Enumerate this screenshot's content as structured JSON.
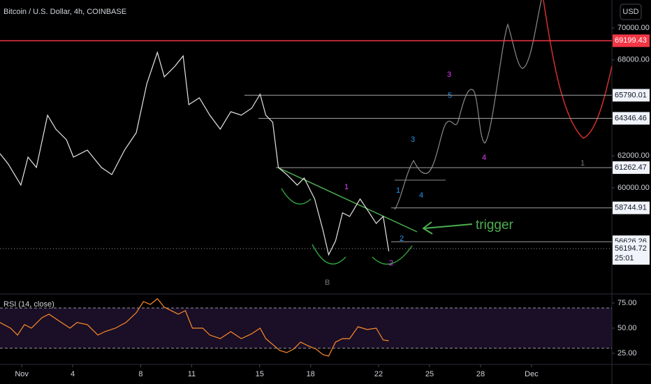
{
  "header": {
    "title": "Bitcoin / U.S. Dollar, 4h, COINBASE",
    "currency": "USD",
    "countdown": "25:01"
  },
  "chart_data": [
    {
      "type": "line",
      "color": "#e6e6e6",
      "x": [
        -0.28,
        0.21,
        0.95,
        1.37,
        1.86,
        2.52,
        3.01,
        3.63,
        4.04,
        4.86,
        5.69,
        6.3,
        7.05,
        7.74,
        8.36,
        8.98,
        9.39,
        10.01,
        10.5,
        10.83,
        11.45,
        12.07,
        12.68,
        13.3,
        13.92,
        14.53,
        15.03,
        15.36,
        15.77,
        16.1,
        16.6,
        17.21,
        17.62,
        18.24,
        18.73,
        19.06,
        19.47,
        19.88,
        20.3,
        20.91,
        21.32,
        21.86,
        22.27,
        22.6
      ],
      "values": [
        62140,
        61480,
        60170,
        61920,
        61270,
        64540,
        63670,
        63010,
        61920,
        62360,
        61270,
        60830,
        62360,
        63450,
        66510,
        68470,
        66940,
        67600,
        68250,
        65200,
        65630,
        64540,
        63670,
        64760,
        64540,
        64980,
        65850,
        64540,
        64100,
        61270,
        60830,
        60170,
        60610,
        59300,
        57340,
        55810,
        56680,
        58430,
        58210,
        59300,
        58650,
        57770,
        58210,
        56030
      ],
      "xlim": [
        -0.28,
        35.73
      ],
      "xticks": [
        {
          "value": 1,
          "label": "Nov"
        },
        4,
        8,
        11,
        15,
        18,
        22,
        25,
        28,
        {
          "value": 31,
          "label": "Dec"
        }
      ],
      "ylim": [
        53362,
        71747
      ],
      "yticks": [
        {
          "value": 70000,
          "label": "70000.00"
        },
        {
          "value": 68000,
          "label": "68000.00"
        },
        {
          "value": 62000,
          "label": "62000.00"
        },
        {
          "value": 60000,
          "label": "60000.00"
        }
      ],
      "levels": [
        {
          "value": 69199.43,
          "color": "#f23645"
        },
        {
          "value": 65790.01,
          "color": "#9e9e9e"
        },
        {
          "value": 64346.46,
          "color": "#9e9e9e"
        },
        {
          "value": 61262.47,
          "color": "#9e9e9e"
        },
        {
          "value": 58744.91,
          "color": "#9e9e9e"
        },
        {
          "value": 56626.26,
          "color": "#9e9e9e"
        },
        {
          "value": 56194.72,
          "color": "#9e9e9e"
        }
      ]
    },
    {
      "type": "line",
      "title": "RSI (14, close)",
      "color": "#ff8a2a",
      "x": [
        -0.28,
        0.34,
        0.75,
        1.16,
        1.57,
        2.19,
        2.6,
        3.22,
        3.84,
        4.25,
        4.86,
        5.48,
        5.89,
        6.51,
        7.13,
        7.74,
        8.16,
        8.57,
        8.98,
        9.39,
        9.8,
        10.21,
        10.63,
        11.04,
        11.65,
        12.07,
        12.68,
        13.3,
        13.92,
        14.53,
        15.03,
        15.36,
        15.85,
        16.18,
        16.59,
        17.0,
        17.41,
        17.83,
        18.32,
        18.73,
        19.06,
        19.47,
        19.88,
        20.3,
        20.79,
        21.32,
        21.86,
        22.27,
        22.6
      ],
      "values": [
        55.6,
        50,
        43.1,
        53.5,
        50,
        60.4,
        63.9,
        56.9,
        50,
        55.6,
        53.5,
        43.1,
        46.5,
        50,
        55.6,
        65.3,
        76.4,
        73.6,
        79.2,
        70.8,
        67.4,
        63.9,
        67.4,
        50,
        50,
        43.1,
        39.6,
        46.5,
        39.6,
        44.4,
        50,
        39.6,
        32.6,
        27.8,
        25.7,
        29.2,
        36.1,
        32.6,
        29.2,
        23.6,
        22.2,
        36.1,
        39.6,
        39.6,
        51.4,
        48.6,
        50,
        38.2,
        37.5
      ],
      "ylim": [
        13.9,
        84.0
      ],
      "yticks": [
        {
          "value": 75,
          "label": "75.00"
        },
        {
          "value": 50,
          "label": "50.00"
        },
        {
          "value": 25,
          "label": "25.00"
        }
      ],
      "band": [
        30,
        70
      ]
    }
  ],
  "annotations": [
    "1",
    "2",
    "3",
    "4",
    "1",
    "2",
    "3",
    "4",
    "5",
    "B",
    "1",
    "trigger"
  ]
}
